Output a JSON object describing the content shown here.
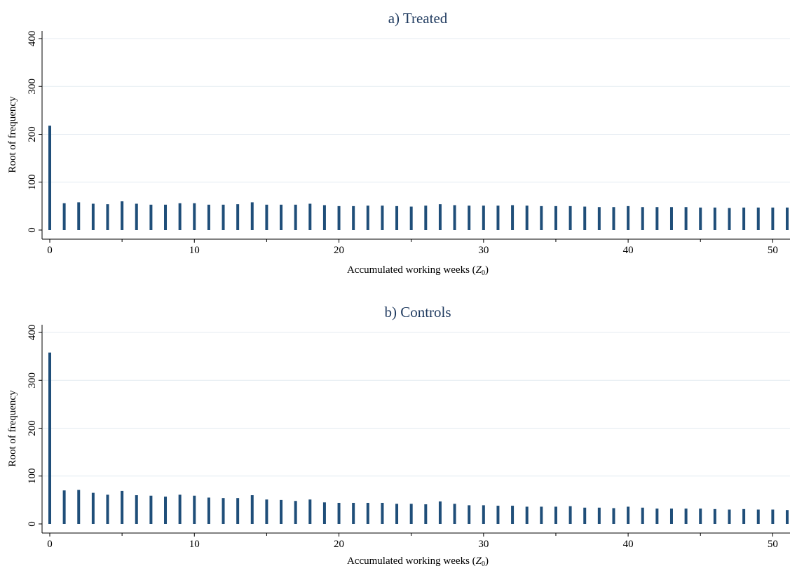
{
  "chart_data": [
    {
      "type": "bar",
      "title": "a) Treated",
      "xlabel": "Accumulated working weeks (",
      "xlabel_var": "Z",
      "xlabel_sub": "0",
      "xlabel_close": ")",
      "ylabel": "Root of frequency",
      "xlim": [
        0,
        51
      ],
      "ylim": [
        0,
        400
      ],
      "xticks": [
        0,
        10,
        20,
        30,
        40,
        50
      ],
      "xticks_minor": [
        5,
        15,
        25,
        35,
        45
      ],
      "yticks": [
        0,
        100,
        200,
        300,
        400
      ],
      "grid": true,
      "bar_color": "#1f4e79",
      "x": [
        0,
        1,
        2,
        3,
        4,
        5,
        6,
        7,
        8,
        9,
        10,
        11,
        12,
        13,
        14,
        15,
        16,
        17,
        18,
        19,
        20,
        21,
        22,
        23,
        24,
        25,
        26,
        27,
        28,
        29,
        30,
        31,
        32,
        33,
        34,
        35,
        36,
        37,
        38,
        39,
        40,
        41,
        42,
        43,
        44,
        45,
        46,
        47,
        48,
        49,
        50,
        51
      ],
      "values": [
        218,
        56,
        58,
        55,
        54,
        60,
        55,
        53,
        53,
        56,
        56,
        53,
        53,
        54,
        58,
        53,
        53,
        53,
        55,
        52,
        50,
        50,
        51,
        51,
        50,
        49,
        51,
        54,
        52,
        51,
        51,
        51,
        52,
        51,
        50,
        50,
        50,
        49,
        48,
        48,
        50,
        48,
        48,
        48,
        48,
        47,
        47,
        46,
        47,
        47,
        47,
        47
      ]
    },
    {
      "type": "bar",
      "title": "b) Controls",
      "xlabel": "Accumulated working weeks (",
      "xlabel_var": "Z",
      "xlabel_sub": "0",
      "xlabel_close": ")",
      "ylabel": "Root of frequency",
      "xlim": [
        0,
        51
      ],
      "ylim": [
        0,
        400
      ],
      "xticks": [
        0,
        10,
        20,
        30,
        40,
        50
      ],
      "xticks_minor": [
        5,
        15,
        25,
        35,
        45
      ],
      "yticks": [
        0,
        100,
        200,
        300,
        400
      ],
      "grid": true,
      "bar_color": "#1f4e79",
      "x": [
        0,
        1,
        2,
        3,
        4,
        5,
        6,
        7,
        8,
        9,
        10,
        11,
        12,
        13,
        14,
        15,
        16,
        17,
        18,
        19,
        20,
        21,
        22,
        23,
        24,
        25,
        26,
        27,
        28,
        29,
        30,
        31,
        32,
        33,
        34,
        35,
        36,
        37,
        38,
        39,
        40,
        41,
        42,
        43,
        44,
        45,
        46,
        47,
        48,
        49,
        50,
        51
      ],
      "values": [
        358,
        70,
        71,
        65,
        61,
        69,
        60,
        59,
        57,
        61,
        59,
        55,
        54,
        54,
        60,
        51,
        50,
        48,
        51,
        45,
        44,
        44,
        44,
        44,
        42,
        42,
        41,
        47,
        42,
        39,
        39,
        38,
        38,
        36,
        36,
        36,
        37,
        34,
        34,
        33,
        36,
        34,
        32,
        32,
        32,
        32,
        31,
        30,
        31,
        30,
        30,
        29
      ]
    }
  ]
}
